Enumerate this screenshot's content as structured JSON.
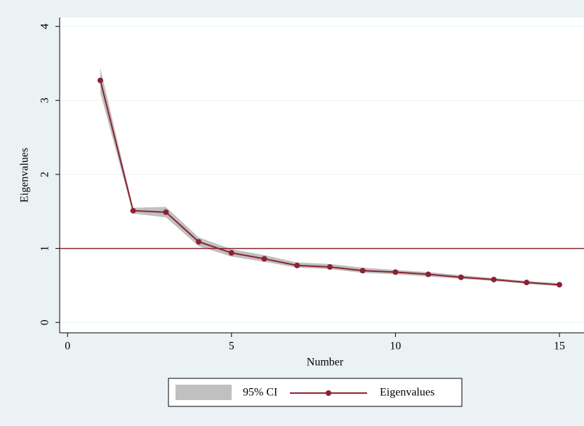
{
  "chart_data": {
    "type": "line",
    "x_label": "Number",
    "y_label": "Eigenvalues",
    "x": [
      1,
      2,
      3,
      4,
      5,
      6,
      7,
      8,
      9,
      10,
      11,
      12,
      13,
      14,
      15
    ],
    "series": [
      {
        "name": "95% CI",
        "color": "#c0c0c0",
        "lower": [
          3.1,
          1.47,
          1.42,
          1.03,
          0.89,
          0.82,
          0.74,
          0.72,
          0.67,
          0.65,
          0.62,
          0.59,
          0.56,
          0.52,
          0.49
        ],
        "upper": [
          3.44,
          1.55,
          1.56,
          1.15,
          0.99,
          0.91,
          0.81,
          0.79,
          0.74,
          0.71,
          0.68,
          0.64,
          0.6,
          0.56,
          0.53
        ]
      },
      {
        "name": "Eigenvalues",
        "color": "#8b2232",
        "values": [
          3.27,
          1.51,
          1.49,
          1.09,
          0.94,
          0.86,
          0.77,
          0.75,
          0.7,
          0.68,
          0.65,
          0.61,
          0.58,
          0.54,
          0.51
        ]
      }
    ],
    "reference_line": {
      "y": 1,
      "color": "#8b2232"
    },
    "xlim": [
      -0.24,
      15.75
    ],
    "xticks": [
      0,
      5,
      10,
      15
    ],
    "ylim": [
      -0.14,
      4.12
    ],
    "yticks": [
      0,
      1,
      2,
      3,
      4
    ],
    "grid": true
  }
}
